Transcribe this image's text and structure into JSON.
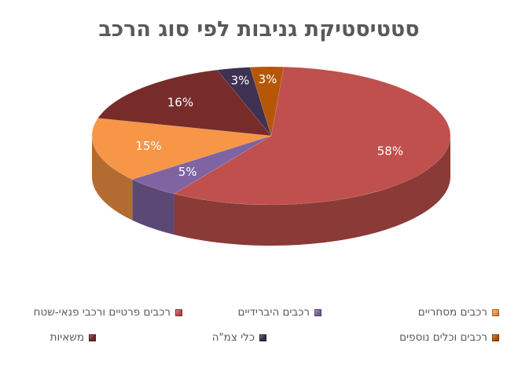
{
  "chart_data": {
    "type": "pie",
    "title": "סטטיסטיקת גניבות לפי סוג הרכב",
    "categories": [
      "רכבים פרטיים ורכבי פנאי-שטח",
      "רכבים היברידיים",
      "רכבים מסחריים",
      "משאיות",
      "כלי צמ\"ה",
      "רכבים וכלים נוספים"
    ],
    "values": [
      58,
      5,
      15,
      16,
      3,
      3
    ],
    "data_labels": [
      "58%",
      "5%",
      "15%",
      "16%",
      "3%",
      "3%"
    ],
    "colors": [
      "#C0504D",
      "#8064A2",
      "#F79646",
      "#772C2A",
      "#3F3151",
      "#B65708"
    ],
    "legend_position": "bottom",
    "style": "3d"
  }
}
